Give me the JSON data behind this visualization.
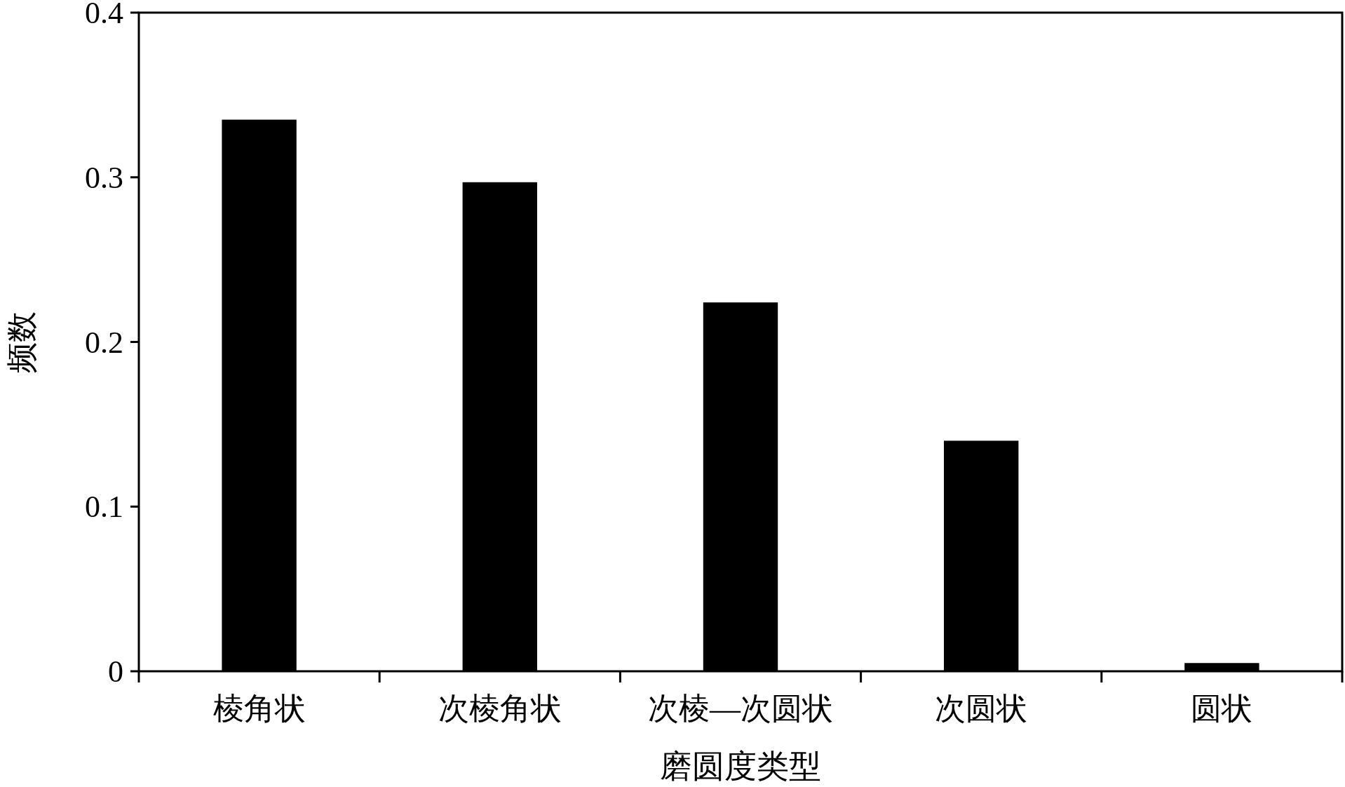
{
  "chart_data": {
    "type": "bar",
    "xlabel": "磨圆度类型",
    "ylabel": "频数",
    "categories": [
      "棱角状",
      "次棱角状",
      "次棱—次圆状",
      "次圆状",
      "圆状"
    ],
    "values": [
      0.335,
      0.297,
      0.224,
      0.14,
      0.005
    ],
    "color": "#000000",
    "ylim": [
      0,
      0.4
    ],
    "yticks": [
      0,
      0.1,
      0.2,
      0.3,
      0.4
    ]
  }
}
